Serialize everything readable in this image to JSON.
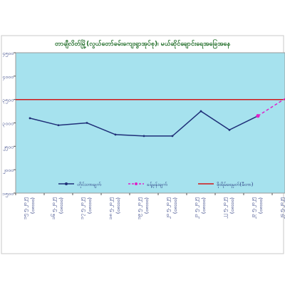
{
  "chart_data": {
    "type": "line",
    "title": "တာချီလိတ်မြို့(လွယ်တော်ခမ်းကျေးရွာအုပ်စု)၊ မယ်ဆိုင်ချောင်းရေအခြေအနေ",
    "categories": [
      "၁၅ ၅.၂၀၂၅ (၀၈း၀၀)",
      "၁၆ ၅.၂၀၂၅ (၀၈း၀၀)",
      "၁၇ ၅.၂၀၂၅ (၀၈း၀၀)",
      "၁၈ ၅.၂၀၂၅ (၀၈း၀၀)",
      "၁၉ ၅.၂၀၂၅ (၀၈း၀၀)",
      "၂၀ ၅.၂၀၂၅ (၀၈း၀၀)",
      "၂၁ ၅.၂၀၂၅ (၀၈း၀၀)",
      "၂၂ ၅.၂၀၂၅ (၀၈း၀၀)",
      "၂၃ ၅.၂၀၂၅ (၀၈း၀၀)",
      "၂၄ ၅.၂၀၂၅ (၀၈း၀၀)"
    ],
    "yticks": [
      "၁၅၀၀",
      "၂၀၀၀",
      "၂၅၀၀",
      "၃၀၀၀",
      "၃၅၀၀",
      "၄၀၀၀",
      "၄၅၀၀"
    ],
    "ylim": [
      1500,
      4500
    ],
    "series": [
      {
        "name": "တိုင်းတာချက်",
        "color": "#1f2f78",
        "style": "solid",
        "points": [
          {
            "x": 0,
            "y": 3100
          },
          {
            "x": 1,
            "y": 2950
          },
          {
            "x": 2,
            "y": 3000
          },
          {
            "x": 3,
            "y": 2750
          },
          {
            "x": 4,
            "y": 2720
          },
          {
            "x": 5,
            "y": 2720
          },
          {
            "x": 6,
            "y": 3250
          },
          {
            "x": 7,
            "y": 2850
          },
          {
            "x": 8,
            "y": 3150
          }
        ]
      },
      {
        "name": "ခန့်မှန်းချက်",
        "color": "#e020c8",
        "style": "dashed",
        "points": [
          {
            "x": 8,
            "y": 3150
          },
          {
            "x": 9,
            "y": 3520
          }
        ]
      },
      {
        "name": "စိုးရိမ်ရေမှတ်(မီတာ)",
        "color": "#d01818",
        "style": "solid",
        "points": [
          {
            "x": -0.5,
            "y": 3500
          },
          {
            "x": 9.5,
            "y": 3500
          }
        ]
      }
    ],
    "grid": false,
    "legend_position": "inside-bottom",
    "colors": {
      "plot_bg": "#a6e2ee",
      "title": "#1c6a24",
      "axis_text": "#1f2f78"
    }
  }
}
